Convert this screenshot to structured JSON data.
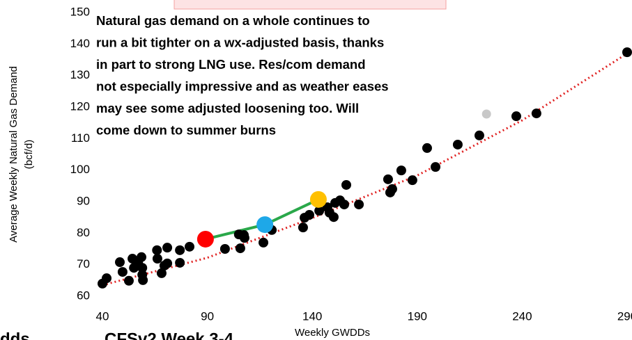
{
  "chart_data": {
    "type": "scatter",
    "annotation": [
      "Natural gas demand on a whole continues to",
      "run a bit tighter on a wx-adjusted basis, thanks",
      "in part to strong LNG use.  Res/com demand",
      "not especially impressive and as weather eases",
      "may see some adjusted loosening too.  Will",
      "come down to summer burns"
    ],
    "x_label": "Weekly GWDDs",
    "y_label": [
      "Average Weekly Natural Gas Demand",
      "(bcf/d)"
    ],
    "footer_texts": [
      "dds",
      "CFSv2 Week 3-4"
    ],
    "xlim": [
      40,
      290
    ],
    "xticks": [
      40,
      90,
      140,
      190,
      240,
      290
    ],
    "ylim": [
      60,
      150
    ],
    "yticks": [
      60,
      70,
      80,
      90,
      100,
      110,
      120,
      130,
      140,
      150
    ],
    "series": [
      {
        "color": "#000000",
        "x": [
          40,
          42,
          48.3,
          49.6,
          52.6,
          54.3,
          55,
          57,
          58.6,
          59,
          59.3,
          59,
          66,
          66.2,
          68.2,
          69.5,
          70.9,
          70.9,
          76.9,
          76.9,
          81.5,
          98.4,
          105,
          105.7,
          107.7,
          107.4,
          116.7,
          120.7,
          135.6,
          136.3,
          138.6,
          143.3,
          147.2,
          148.2,
          150.2,
          150.9,
          153.2,
          155.2,
          156.2,
          162.2,
          176.1,
          177.1,
          178.1,
          182.4,
          187.7,
          194.7,
          198.7,
          209.3,
          219.6,
          237.2,
          246.8,
          290
        ],
        "values": [
          64,
          65.7,
          70.8,
          67.7,
          64.9,
          71.9,
          69,
          70.6,
          72.4,
          66.8,
          65.1,
          69,
          74.6,
          71.9,
          67.3,
          69.7,
          70.4,
          75.4,
          74.6,
          70.6,
          75.7,
          75,
          79.6,
          75.2,
          78.5,
          79.4,
          77,
          81,
          81.8,
          84.9,
          85.8,
          87.1,
          88.2,
          86.5,
          85.1,
          89.6,
          90.4,
          89.1,
          95.3,
          89.1,
          97.1,
          92.9,
          94,
          99.9,
          96.8,
          107,
          101,
          108.1,
          111,
          117.1,
          118,
          137.4
        ]
      },
      {
        "color": "#c8c8c8",
        "x": [
          223
        ],
        "values": [
          117.8
        ]
      },
      {
        "color": "#ff0000",
        "x": [
          89.1
        ],
        "values": [
          78.1
        ]
      },
      {
        "color": "#1ea8e8",
        "x": [
          117.4
        ],
        "values": [
          82.7
        ]
      },
      {
        "color": "#ffc000",
        "x": [
          142.9
        ],
        "values": [
          90.7
        ]
      }
    ],
    "connector": {
      "color": "#2aa84a",
      "series": [
        2,
        3,
        4
      ]
    },
    "trend": {
      "color": "#e02020",
      "x": [
        40,
        90,
        140,
        190,
        240,
        290
      ],
      "values": [
        63.5,
        72.2,
        84.8,
        98.3,
        115.8,
        137
      ]
    }
  }
}
